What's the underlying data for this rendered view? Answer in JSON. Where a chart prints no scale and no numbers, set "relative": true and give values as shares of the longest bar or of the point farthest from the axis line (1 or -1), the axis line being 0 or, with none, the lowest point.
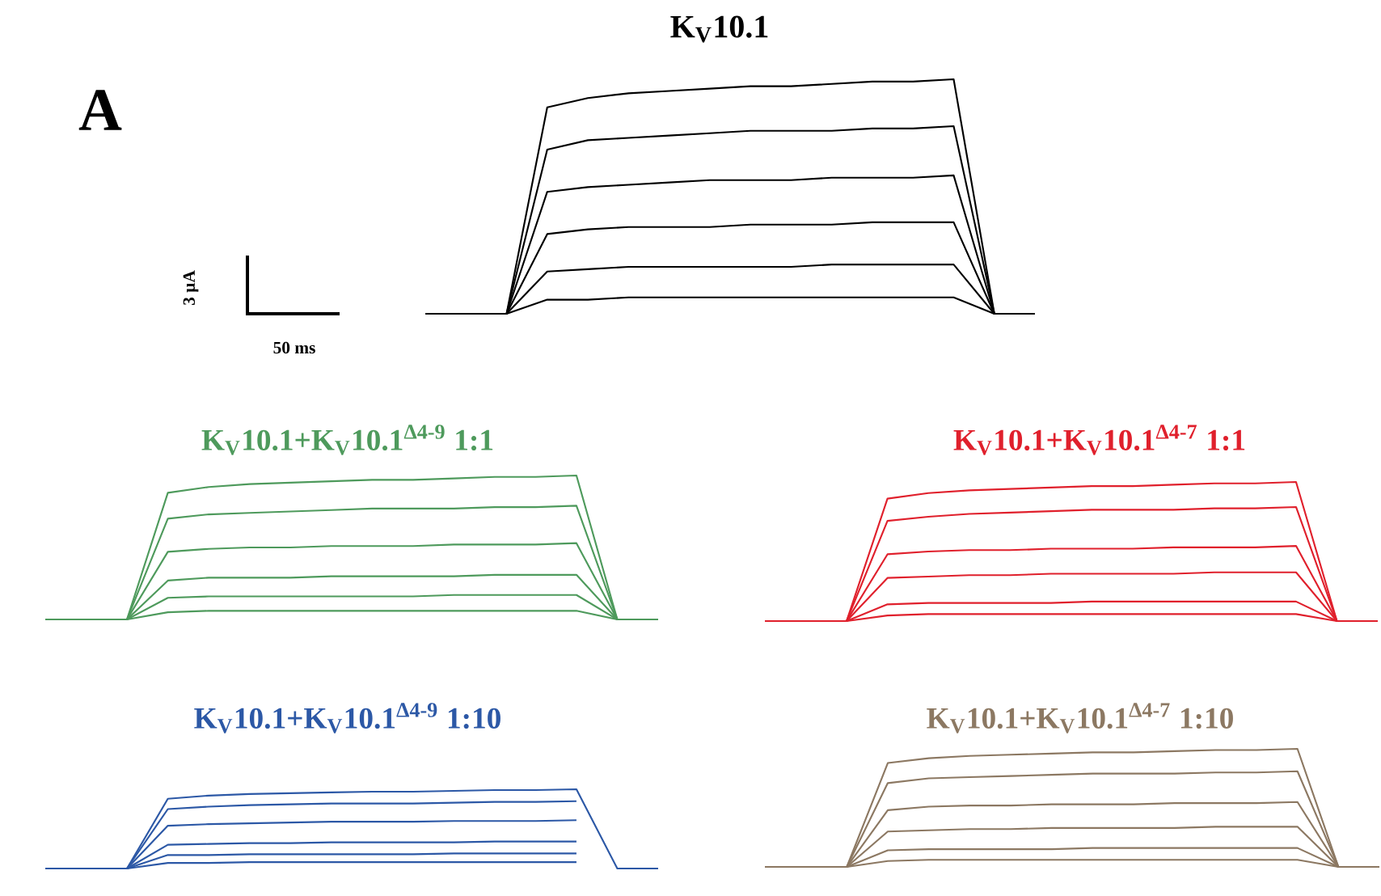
{
  "chart_data": [
    {
      "type": "line",
      "relative": true,
      "title": "K$_{V}$10.1",
      "annotations": [
        "A",
        "3 µA",
        "50 ms"
      ],
      "categories": [
        null,
        null,
        null,
        null,
        null,
        null,
        null,
        null,
        null,
        null,
        null,
        null,
        null,
        null,
        null,
        null
      ],
      "series": [
        {
          "color": "#000000",
          "values": [
            0,
            0,
            0,
            0.88,
            0.92,
            0.94,
            0.95,
            0.96,
            0.97,
            0.97,
            0.98,
            0.99,
            0.99,
            1,
            0,
            0
          ]
        },
        {
          "color": "#000000",
          "values": [
            null,
            null,
            0,
            0.7,
            0.74,
            0.75,
            0.76,
            0.77,
            0.78,
            0.78,
            0.78,
            0.79,
            0.79,
            0.8,
            0,
            null
          ]
        },
        {
          "color": "#000000",
          "values": [
            null,
            null,
            0,
            0.52,
            0.54,
            0.55,
            0.56,
            0.57,
            0.57,
            0.57,
            0.58,
            0.58,
            0.58,
            0.59,
            0,
            null
          ]
        },
        {
          "color": "#000000",
          "values": [
            null,
            null,
            0,
            0.34,
            0.36,
            0.37,
            0.37,
            0.37,
            0.38,
            0.38,
            0.38,
            0.39,
            0.39,
            0.39,
            0,
            null
          ]
        },
        {
          "color": "#000000",
          "values": [
            null,
            null,
            0,
            0.18,
            0.19,
            0.2,
            0.2,
            0.2,
            0.2,
            0.2,
            0.21,
            0.21,
            0.21,
            0.21,
            0,
            null
          ]
        },
        {
          "color": "#000000",
          "values": [
            null,
            null,
            0,
            0.06,
            0.06,
            0.07,
            0.07,
            0.07,
            0.07,
            0.07,
            0.07,
            0.07,
            0.07,
            0.07,
            0,
            null
          ]
        }
      ]
    },
    {
      "type": "line",
      "relative": true,
      "title": "K$_{V}$10.1+K$_{V}$10.1$^{Δ4-9}$ 1:1",
      "categories": [
        null,
        null,
        null,
        null,
        null,
        null,
        null,
        null,
        null,
        null,
        null,
        null,
        null,
        null,
        null,
        null
      ],
      "series": [
        {
          "color": "#4e9a5c",
          "values": [
            0,
            0,
            0,
            0.88,
            0.92,
            0.94,
            0.95,
            0.96,
            0.97,
            0.97,
            0.98,
            0.99,
            0.99,
            1,
            0,
            0
          ]
        },
        {
          "color": "#4e9a5c",
          "values": [
            null,
            null,
            0,
            0.7,
            0.73,
            0.74,
            0.75,
            0.76,
            0.77,
            0.77,
            0.77,
            0.78,
            0.78,
            0.79,
            0,
            null
          ]
        },
        {
          "color": "#4e9a5c",
          "values": [
            null,
            null,
            0,
            0.47,
            0.49,
            0.5,
            0.5,
            0.51,
            0.51,
            0.51,
            0.52,
            0.52,
            0.52,
            0.53,
            0,
            null
          ]
        },
        {
          "color": "#4e9a5c",
          "values": [
            null,
            null,
            0,
            0.27,
            0.29,
            0.29,
            0.29,
            0.3,
            0.3,
            0.3,
            0.3,
            0.31,
            0.31,
            0.31,
            0,
            null
          ]
        },
        {
          "color": "#4e9a5c",
          "values": [
            null,
            null,
            0,
            0.15,
            0.16,
            0.16,
            0.16,
            0.16,
            0.16,
            0.16,
            0.17,
            0.17,
            0.17,
            0.17,
            0,
            null
          ]
        },
        {
          "color": "#4e9a5c",
          "values": [
            null,
            null,
            0,
            0.05,
            0.06,
            0.06,
            0.06,
            0.06,
            0.06,
            0.06,
            0.06,
            0.06,
            0.06,
            0.06,
            0,
            null
          ]
        }
      ]
    },
    {
      "type": "line",
      "relative": true,
      "title": "K$_{V}$10.1+K$_{V}$10.1$^{Δ4-7}$ 1:1",
      "categories": [
        null,
        null,
        null,
        null,
        null,
        null,
        null,
        null,
        null,
        null,
        null,
        null,
        null,
        null,
        null,
        null
      ],
      "series": [
        {
          "color": "#e0202c",
          "values": [
            0,
            0,
            0,
            0.88,
            0.92,
            0.94,
            0.95,
            0.96,
            0.97,
            0.97,
            0.98,
            0.99,
            0.99,
            1,
            0,
            0
          ]
        },
        {
          "color": "#e0202c",
          "values": [
            null,
            null,
            0,
            0.72,
            0.75,
            0.77,
            0.78,
            0.79,
            0.8,
            0.8,
            0.8,
            0.81,
            0.81,
            0.82,
            0,
            null
          ]
        },
        {
          "color": "#e0202c",
          "values": [
            null,
            null,
            0,
            0.48,
            0.5,
            0.51,
            0.51,
            0.52,
            0.52,
            0.52,
            0.53,
            0.53,
            0.53,
            0.54,
            0,
            null
          ]
        },
        {
          "color": "#e0202c",
          "values": [
            null,
            null,
            0,
            0.31,
            0.32,
            0.33,
            0.33,
            0.34,
            0.34,
            0.34,
            0.34,
            0.35,
            0.35,
            0.35,
            0,
            null
          ]
        },
        {
          "color": "#e0202c",
          "values": [
            null,
            null,
            0,
            0.12,
            0.13,
            0.13,
            0.13,
            0.13,
            0.14,
            0.14,
            0.14,
            0.14,
            0.14,
            0.14,
            0,
            null
          ]
        },
        {
          "color": "#e0202c",
          "values": [
            null,
            null,
            0,
            0.04,
            0.05,
            0.05,
            0.05,
            0.05,
            0.05,
            0.05,
            0.05,
            0.05,
            0.05,
            0.05,
            0,
            null
          ]
        }
      ]
    },
    {
      "type": "line",
      "relative": true,
      "title": "K$_{V}$10.1+K$_{V}$10.1$^{Δ4-9}$  1:10",
      "categories": [
        null,
        null,
        null,
        null,
        null,
        null,
        null,
        null,
        null,
        null,
        null,
        null,
        null,
        null,
        null,
        null
      ],
      "series": [
        {
          "color": "#2c58a6",
          "values": [
            0,
            0,
            0,
            0.88,
            0.92,
            0.94,
            0.95,
            0.96,
            0.97,
            0.97,
            0.98,
            0.99,
            0.99,
            1,
            0,
            0
          ]
        },
        {
          "color": "#2c58a6",
          "values": [
            null,
            null,
            0,
            0.75,
            0.78,
            0.8,
            0.81,
            0.82,
            0.82,
            0.82,
            0.83,
            0.84,
            0.84,
            0.85,
            null,
            null
          ]
        },
        {
          "color": "#2c58a6",
          "values": [
            null,
            null,
            0,
            0.54,
            0.56,
            0.57,
            0.58,
            0.59,
            0.59,
            0.59,
            0.6,
            0.6,
            0.6,
            0.61,
            null,
            null
          ]
        },
        {
          "color": "#2c58a6",
          "values": [
            null,
            null,
            0,
            0.3,
            0.31,
            0.32,
            0.32,
            0.33,
            0.33,
            0.33,
            0.33,
            0.34,
            0.34,
            0.34,
            null,
            null
          ]
        },
        {
          "color": "#2c58a6",
          "values": [
            null,
            null,
            0,
            0.17,
            0.17,
            0.18,
            0.18,
            0.18,
            0.18,
            0.18,
            0.19,
            0.19,
            0.19,
            0.19,
            null,
            null
          ]
        },
        {
          "color": "#2c58a6",
          "values": [
            null,
            null,
            0,
            0.07,
            0.07,
            0.08,
            0.08,
            0.08,
            0.08,
            0.08,
            0.08,
            0.08,
            0.08,
            0.08,
            null,
            null
          ]
        }
      ]
    },
    {
      "type": "line",
      "relative": true,
      "title": "K$_{V}$10.1+K$_{V}$10.1$^{Δ4-7}$  1:10",
      "categories": [
        null,
        null,
        null,
        null,
        null,
        null,
        null,
        null,
        null,
        null,
        null,
        null,
        null,
        null,
        null,
        null
      ],
      "series": [
        {
          "color": "#8c7862",
          "values": [
            0,
            0,
            0,
            0.88,
            0.92,
            0.94,
            0.95,
            0.96,
            0.97,
            0.97,
            0.98,
            0.99,
            0.99,
            1,
            0,
            0
          ]
        },
        {
          "color": "#8c7862",
          "values": [
            null,
            null,
            0,
            0.71,
            0.75,
            0.76,
            0.77,
            0.78,
            0.79,
            0.79,
            0.79,
            0.8,
            0.8,
            0.81,
            0,
            null
          ]
        },
        {
          "color": "#8c7862",
          "values": [
            null,
            null,
            0,
            0.48,
            0.51,
            0.52,
            0.52,
            0.53,
            0.53,
            0.53,
            0.54,
            0.54,
            0.54,
            0.55,
            0,
            null
          ]
        },
        {
          "color": "#8c7862",
          "values": [
            null,
            null,
            0,
            0.3,
            0.31,
            0.32,
            0.32,
            0.33,
            0.33,
            0.33,
            0.33,
            0.34,
            0.34,
            0.34,
            0,
            null
          ]
        },
        {
          "color": "#8c7862",
          "values": [
            null,
            null,
            0,
            0.14,
            0.15,
            0.15,
            0.15,
            0.15,
            0.16,
            0.16,
            0.16,
            0.16,
            0.16,
            0.16,
            0,
            null
          ]
        },
        {
          "color": "#8c7862",
          "values": [
            null,
            null,
            0,
            0.05,
            0.06,
            0.06,
            0.06,
            0.06,
            0.06,
            0.06,
            0.06,
            0.06,
            0.06,
            0.06,
            0,
            null
          ]
        }
      ]
    }
  ]
}
